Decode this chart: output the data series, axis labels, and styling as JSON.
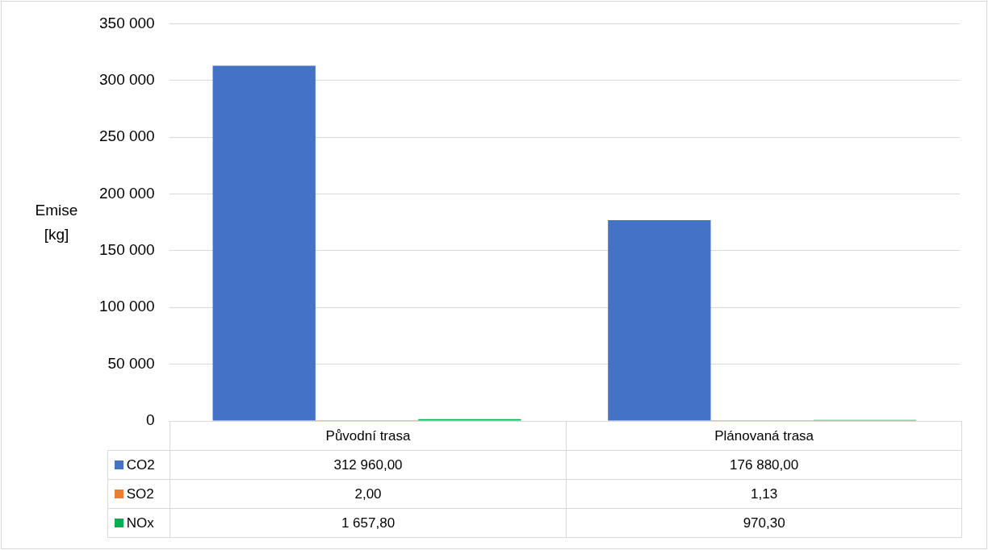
{
  "chart_data": {
    "type": "bar",
    "ylabel": "Emise [kg]",
    "categories": [
      "Původní trasa",
      "Plánovaná trasa"
    ],
    "series": [
      {
        "name": "CO2",
        "color": "#4472c4",
        "values": [
          312960,
          176880
        ],
        "value_labels": [
          "312 960,00",
          "176 880,00"
        ]
      },
      {
        "name": "SO2",
        "color": "#ed7d31",
        "values": [
          2,
          1.13
        ],
        "value_labels": [
          "2,00",
          "1,13"
        ]
      },
      {
        "name": "NOx",
        "color": "#00b050",
        "values": [
          1657.8,
          970.3
        ],
        "value_labels": [
          "1 657,80",
          "970,30"
        ]
      }
    ],
    "ylim": [
      0,
      350000
    ],
    "yticks": [
      {
        "value": 0,
        "label": "0"
      },
      {
        "value": 50000,
        "label": "50 000"
      },
      {
        "value": 100000,
        "label": "100 000"
      },
      {
        "value": 150000,
        "label": "150 000"
      },
      {
        "value": 200000,
        "label": "200 000"
      },
      {
        "value": 250000,
        "label": "250 000"
      },
      {
        "value": 300000,
        "label": "300 000"
      },
      {
        "value": 350000,
        "label": "350 000"
      }
    ],
    "grid": "y",
    "legend": "bottom"
  }
}
